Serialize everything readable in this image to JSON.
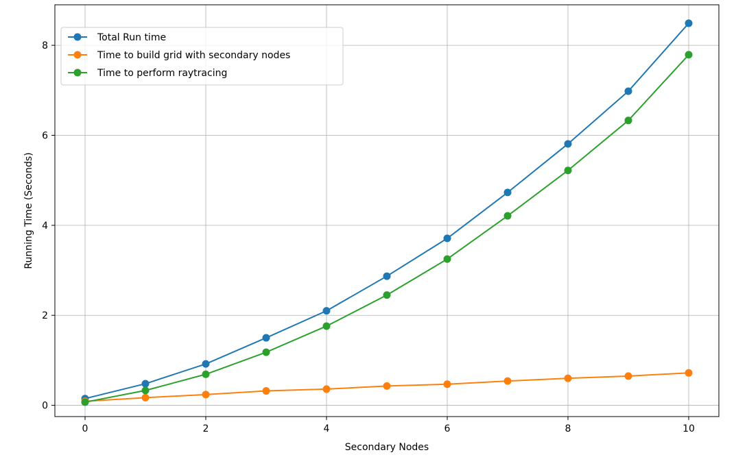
{
  "chart_data": {
    "type": "line",
    "title": "",
    "xlabel": "Secondary Nodes",
    "ylabel": "Running Time (Seconds)",
    "xlim": [
      -0.5,
      10.5
    ],
    "ylim": [
      -0.25,
      8.9
    ],
    "xticks": [
      0,
      2,
      4,
      6,
      8,
      10
    ],
    "yticks": [
      0,
      2,
      4,
      6,
      8
    ],
    "grid": true,
    "legend_position": "top-left",
    "x": [
      0,
      1,
      2,
      3,
      4,
      5,
      6,
      7,
      8,
      9,
      10
    ],
    "series": [
      {
        "name": "Total Run time",
        "color": "#1f77b4",
        "values": [
          0.15,
          0.48,
          0.92,
          1.5,
          2.1,
          2.87,
          3.71,
          4.73,
          5.81,
          6.98,
          8.49
        ]
      },
      {
        "name": "Time to build grid with secondary nodes",
        "color": "#ff7f0e",
        "values": [
          0.09,
          0.17,
          0.24,
          0.32,
          0.36,
          0.43,
          0.47,
          0.54,
          0.6,
          0.65,
          0.72
        ]
      },
      {
        "name": "Time to perform raytracing",
        "color": "#2ca02c",
        "values": [
          0.07,
          0.33,
          0.69,
          1.18,
          1.76,
          2.45,
          3.25,
          4.21,
          5.22,
          6.33,
          7.79
        ]
      }
    ]
  }
}
